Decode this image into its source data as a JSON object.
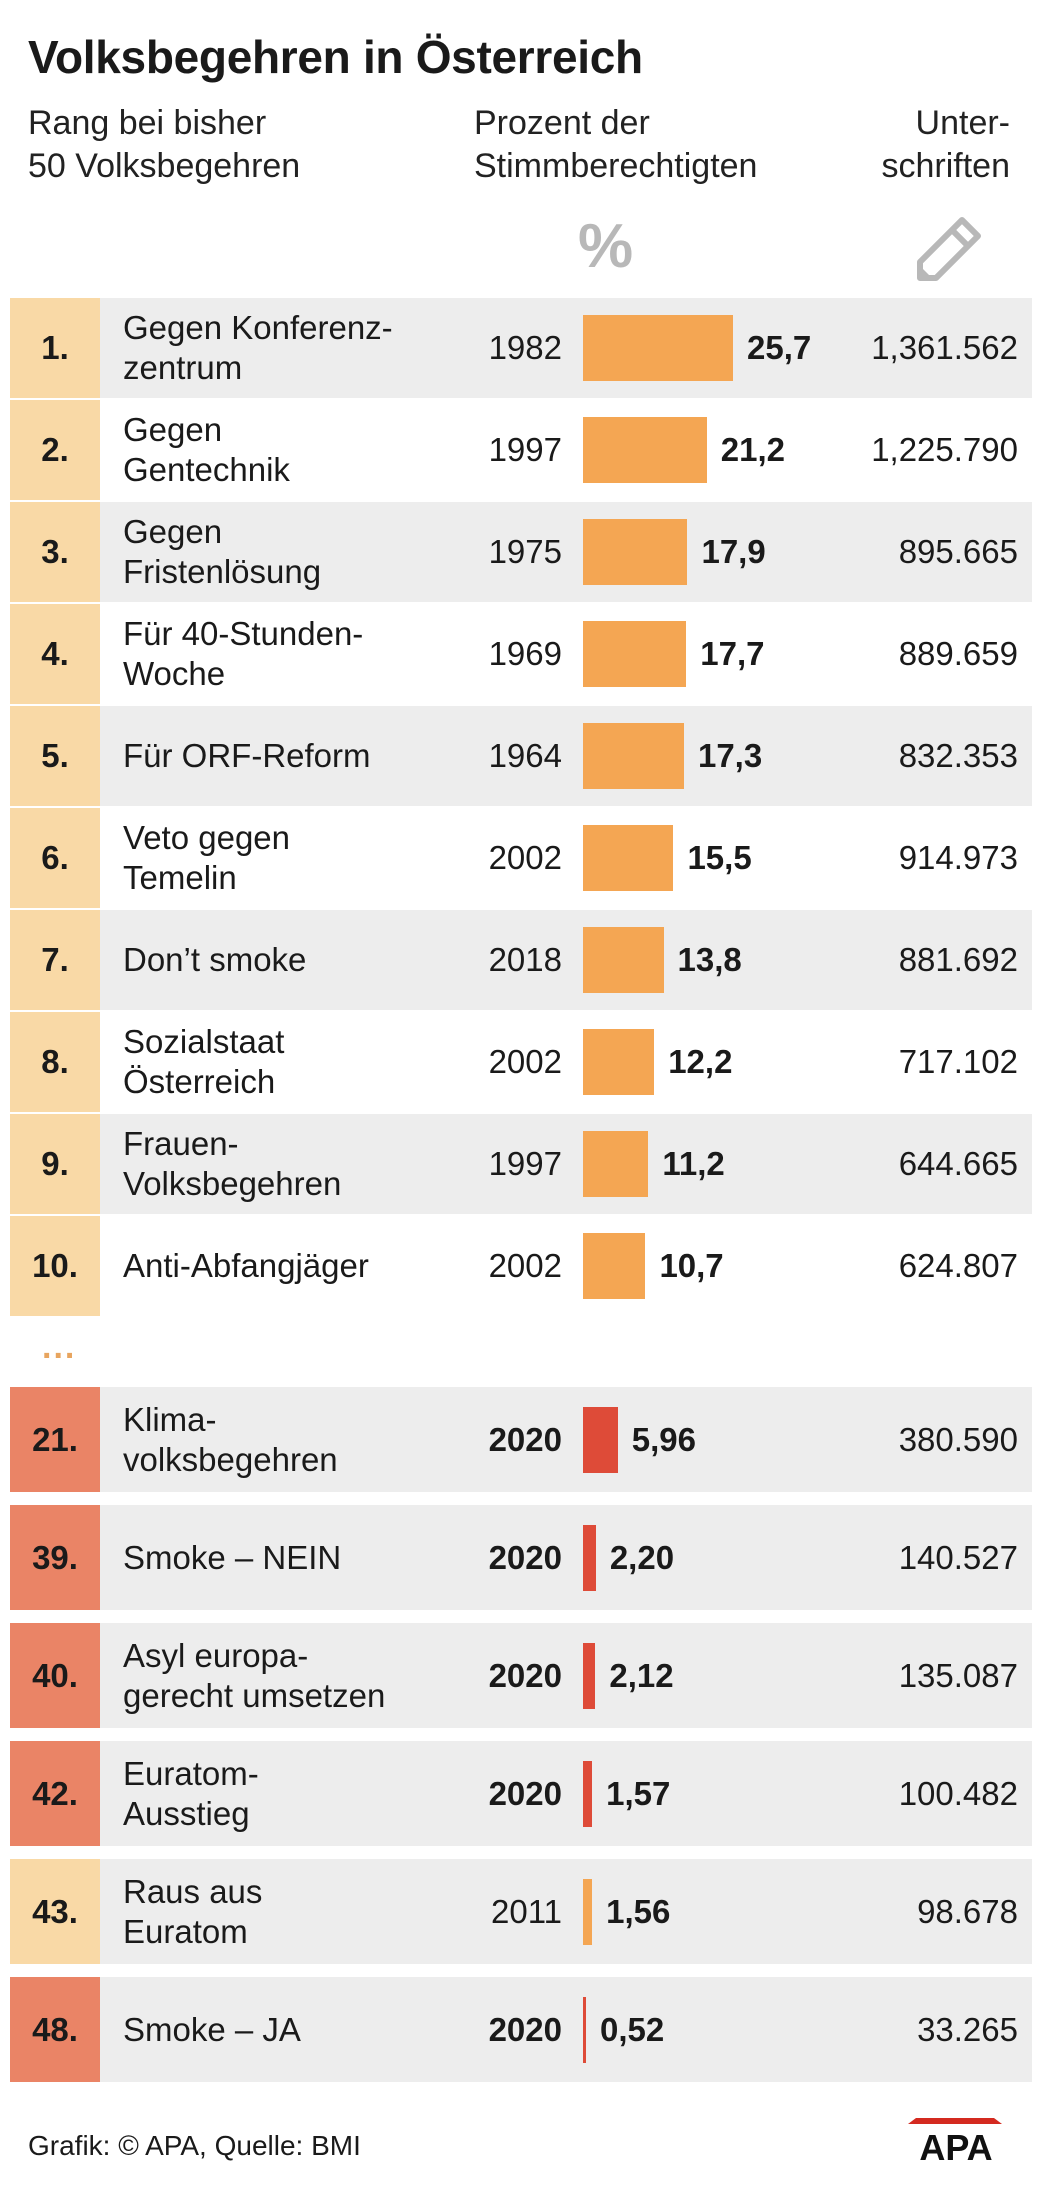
{
  "title": "Volksbegehren in Österreich",
  "headers": {
    "rank": "Rang bei bisher\n50 Volksbegehren",
    "percent": "Prozent der\nStimmberechtigten",
    "signatures": "Unter-\nschriften"
  },
  "percent_icon": "%",
  "pencil_icon": "pencil-icon",
  "colors": {
    "rank_light": "#f9d9a6",
    "rank_red": "#ea8466",
    "bar_orange": "#f4a653",
    "bar_red": "#de4b38",
    "row_shade": "#ededed",
    "divider": "#ffffff"
  },
  "ellipsis": "...",
  "footer": "Grafik: © APA, Quelle: BMI",
  "logo_text": "APA",
  "chart_data": {
    "type": "bar",
    "orientation": "horizontal",
    "title": "Volksbegehren in Österreich",
    "ylabel": "Prozent der Stimmberechtigten",
    "unit": "%",
    "rows": [
      {
        "rank": "1.",
        "name": "Gegen Konferenz-\nzentrum",
        "year": "1982",
        "value": 25.7,
        "value_label": "25,7",
        "signatures": "1,361.562",
        "highlight": false
      },
      {
        "rank": "2.",
        "name": "Gegen\nGentechnik",
        "year": "1997",
        "value": 21.2,
        "value_label": "21,2",
        "signatures": "1,225.790",
        "highlight": false
      },
      {
        "rank": "3.",
        "name": "Gegen\nFristenlösung",
        "year": "1975",
        "value": 17.9,
        "value_label": "17,9",
        "signatures": "895.665",
        "highlight": false
      },
      {
        "rank": "4.",
        "name": "Für 40-Stunden-\nWoche",
        "year": "1969",
        "value": 17.7,
        "value_label": "17,7",
        "signatures": "889.659",
        "highlight": false
      },
      {
        "rank": "5.",
        "name": "Für ORF-Reform",
        "year": "1964",
        "value": 17.3,
        "value_label": "17,3",
        "signatures": "832.353",
        "highlight": false
      },
      {
        "rank": "6.",
        "name": "Veto gegen\nTemelin",
        "year": "2002",
        "value": 15.5,
        "value_label": "15,5",
        "signatures": "914.973",
        "highlight": false
      },
      {
        "rank": "7.",
        "name": "Don’t smoke",
        "year": "2018",
        "value": 13.8,
        "value_label": "13,8",
        "signatures": "881.692",
        "highlight": false
      },
      {
        "rank": "8.",
        "name": "Sozialstaat\nÖsterreich",
        "year": "2002",
        "value": 12.2,
        "value_label": "12,2",
        "signatures": "717.102",
        "highlight": false
      },
      {
        "rank": "9.",
        "name": "Frauen-\nVolksbegehren",
        "year": "1997",
        "value": 11.2,
        "value_label": "11,2",
        "signatures": "644.665",
        "highlight": false
      },
      {
        "rank": "10.",
        "name": "Anti-Abfangjäger",
        "year": "2002",
        "value": 10.7,
        "value_label": "10,7",
        "signatures": "624.807",
        "highlight": false
      },
      {
        "rank": "21.",
        "name": "Klima-\nvolksbegehren",
        "year": "2020",
        "value": 5.96,
        "value_label": "5,96",
        "signatures": "380.590",
        "highlight": true
      },
      {
        "rank": "39.",
        "name": "Smoke – NEIN",
        "year": "2020",
        "value": 2.2,
        "value_label": "2,20",
        "signatures": "140.527",
        "highlight": true
      },
      {
        "rank": "40.",
        "name": "Asyl europa-\ngerecht umsetzen",
        "year": "2020",
        "value": 2.12,
        "value_label": "2,12",
        "signatures": "135.087",
        "highlight": true
      },
      {
        "rank": "42.",
        "name": "Euratom-\nAusstieg",
        "year": "2020",
        "value": 1.57,
        "value_label": "1,57",
        "signatures": "100.482",
        "highlight": true
      },
      {
        "rank": "43.",
        "name": "Raus aus\nEuratom",
        "year": "2011",
        "value": 1.56,
        "value_label": "1,56",
        "signatures": "98.678",
        "highlight": false
      },
      {
        "rank": "48.",
        "name": "Smoke – JA",
        "year": "2020",
        "value": 0.52,
        "value_label": "0,52",
        "signatures": "33.265",
        "highlight": true
      }
    ]
  }
}
